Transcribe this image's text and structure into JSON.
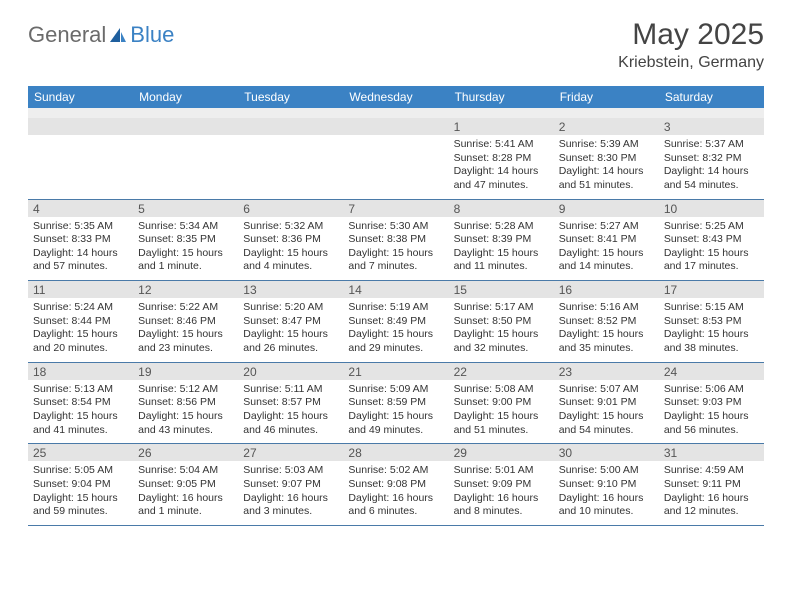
{
  "logo": {
    "part1": "General",
    "part2": "Blue"
  },
  "title": "May 2025",
  "location": "Kriebstein, Germany",
  "colors": {
    "header_bg": "#3b82c4",
    "header_text": "#ffffff",
    "numrow_bg": "#e4e4e4",
    "spacer_bg": "#eeeeee",
    "border": "#4a7aa8",
    "text": "#333333",
    "title_text": "#444444",
    "logo_gray": "#6b6b6b",
    "logo_blue": "#3b82c4"
  },
  "dow": [
    "Sunday",
    "Monday",
    "Tuesday",
    "Wednesday",
    "Thursday",
    "Friday",
    "Saturday"
  ],
  "weeks": [
    [
      null,
      null,
      null,
      null,
      {
        "n": "1",
        "sr": "Sunrise: 5:41 AM",
        "ss": "Sunset: 8:28 PM",
        "d1": "Daylight: 14 hours",
        "d2": "and 47 minutes."
      },
      {
        "n": "2",
        "sr": "Sunrise: 5:39 AM",
        "ss": "Sunset: 8:30 PM",
        "d1": "Daylight: 14 hours",
        "d2": "and 51 minutes."
      },
      {
        "n": "3",
        "sr": "Sunrise: 5:37 AM",
        "ss": "Sunset: 8:32 PM",
        "d1": "Daylight: 14 hours",
        "d2": "and 54 minutes."
      }
    ],
    [
      {
        "n": "4",
        "sr": "Sunrise: 5:35 AM",
        "ss": "Sunset: 8:33 PM",
        "d1": "Daylight: 14 hours",
        "d2": "and 57 minutes."
      },
      {
        "n": "5",
        "sr": "Sunrise: 5:34 AM",
        "ss": "Sunset: 8:35 PM",
        "d1": "Daylight: 15 hours",
        "d2": "and 1 minute."
      },
      {
        "n": "6",
        "sr": "Sunrise: 5:32 AM",
        "ss": "Sunset: 8:36 PM",
        "d1": "Daylight: 15 hours",
        "d2": "and 4 minutes."
      },
      {
        "n": "7",
        "sr": "Sunrise: 5:30 AM",
        "ss": "Sunset: 8:38 PM",
        "d1": "Daylight: 15 hours",
        "d2": "and 7 minutes."
      },
      {
        "n": "8",
        "sr": "Sunrise: 5:28 AM",
        "ss": "Sunset: 8:39 PM",
        "d1": "Daylight: 15 hours",
        "d2": "and 11 minutes."
      },
      {
        "n": "9",
        "sr": "Sunrise: 5:27 AM",
        "ss": "Sunset: 8:41 PM",
        "d1": "Daylight: 15 hours",
        "d2": "and 14 minutes."
      },
      {
        "n": "10",
        "sr": "Sunrise: 5:25 AM",
        "ss": "Sunset: 8:43 PM",
        "d1": "Daylight: 15 hours",
        "d2": "and 17 minutes."
      }
    ],
    [
      {
        "n": "11",
        "sr": "Sunrise: 5:24 AM",
        "ss": "Sunset: 8:44 PM",
        "d1": "Daylight: 15 hours",
        "d2": "and 20 minutes."
      },
      {
        "n": "12",
        "sr": "Sunrise: 5:22 AM",
        "ss": "Sunset: 8:46 PM",
        "d1": "Daylight: 15 hours",
        "d2": "and 23 minutes."
      },
      {
        "n": "13",
        "sr": "Sunrise: 5:20 AM",
        "ss": "Sunset: 8:47 PM",
        "d1": "Daylight: 15 hours",
        "d2": "and 26 minutes."
      },
      {
        "n": "14",
        "sr": "Sunrise: 5:19 AM",
        "ss": "Sunset: 8:49 PM",
        "d1": "Daylight: 15 hours",
        "d2": "and 29 minutes."
      },
      {
        "n": "15",
        "sr": "Sunrise: 5:17 AM",
        "ss": "Sunset: 8:50 PM",
        "d1": "Daylight: 15 hours",
        "d2": "and 32 minutes."
      },
      {
        "n": "16",
        "sr": "Sunrise: 5:16 AM",
        "ss": "Sunset: 8:52 PM",
        "d1": "Daylight: 15 hours",
        "d2": "and 35 minutes."
      },
      {
        "n": "17",
        "sr": "Sunrise: 5:15 AM",
        "ss": "Sunset: 8:53 PM",
        "d1": "Daylight: 15 hours",
        "d2": "and 38 minutes."
      }
    ],
    [
      {
        "n": "18",
        "sr": "Sunrise: 5:13 AM",
        "ss": "Sunset: 8:54 PM",
        "d1": "Daylight: 15 hours",
        "d2": "and 41 minutes."
      },
      {
        "n": "19",
        "sr": "Sunrise: 5:12 AM",
        "ss": "Sunset: 8:56 PM",
        "d1": "Daylight: 15 hours",
        "d2": "and 43 minutes."
      },
      {
        "n": "20",
        "sr": "Sunrise: 5:11 AM",
        "ss": "Sunset: 8:57 PM",
        "d1": "Daylight: 15 hours",
        "d2": "and 46 minutes."
      },
      {
        "n": "21",
        "sr": "Sunrise: 5:09 AM",
        "ss": "Sunset: 8:59 PM",
        "d1": "Daylight: 15 hours",
        "d2": "and 49 minutes."
      },
      {
        "n": "22",
        "sr": "Sunrise: 5:08 AM",
        "ss": "Sunset: 9:00 PM",
        "d1": "Daylight: 15 hours",
        "d2": "and 51 minutes."
      },
      {
        "n": "23",
        "sr": "Sunrise: 5:07 AM",
        "ss": "Sunset: 9:01 PM",
        "d1": "Daylight: 15 hours",
        "d2": "and 54 minutes."
      },
      {
        "n": "24",
        "sr": "Sunrise: 5:06 AM",
        "ss": "Sunset: 9:03 PM",
        "d1": "Daylight: 15 hours",
        "d2": "and 56 minutes."
      }
    ],
    [
      {
        "n": "25",
        "sr": "Sunrise: 5:05 AM",
        "ss": "Sunset: 9:04 PM",
        "d1": "Daylight: 15 hours",
        "d2": "and 59 minutes."
      },
      {
        "n": "26",
        "sr": "Sunrise: 5:04 AM",
        "ss": "Sunset: 9:05 PM",
        "d1": "Daylight: 16 hours",
        "d2": "and 1 minute."
      },
      {
        "n": "27",
        "sr": "Sunrise: 5:03 AM",
        "ss": "Sunset: 9:07 PM",
        "d1": "Daylight: 16 hours",
        "d2": "and 3 minutes."
      },
      {
        "n": "28",
        "sr": "Sunrise: 5:02 AM",
        "ss": "Sunset: 9:08 PM",
        "d1": "Daylight: 16 hours",
        "d2": "and 6 minutes."
      },
      {
        "n": "29",
        "sr": "Sunrise: 5:01 AM",
        "ss": "Sunset: 9:09 PM",
        "d1": "Daylight: 16 hours",
        "d2": "and 8 minutes."
      },
      {
        "n": "30",
        "sr": "Sunrise: 5:00 AM",
        "ss": "Sunset: 9:10 PM",
        "d1": "Daylight: 16 hours",
        "d2": "and 10 minutes."
      },
      {
        "n": "31",
        "sr": "Sunrise: 4:59 AM",
        "ss": "Sunset: 9:11 PM",
        "d1": "Daylight: 16 hours",
        "d2": "and 12 minutes."
      }
    ]
  ]
}
